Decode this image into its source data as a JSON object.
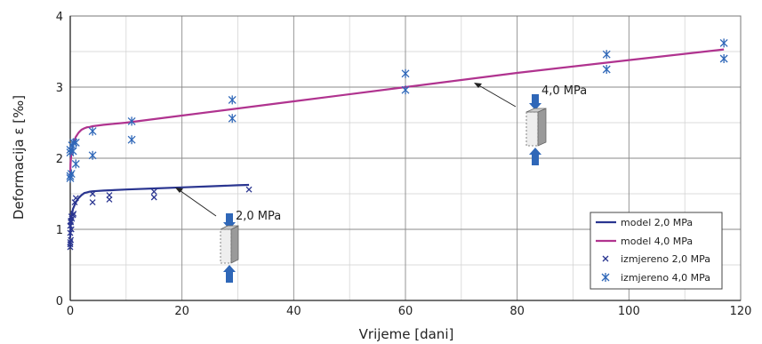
{
  "chart_data": {
    "type": "line",
    "xlabel": "Vrijeme [dani]",
    "ylabel": "Deformacija ε [‰]",
    "xlim": [
      0,
      120
    ],
    "ylim": [
      0,
      4
    ],
    "x_ticks": [
      0,
      20,
      40,
      60,
      80,
      100,
      120
    ],
    "x_tick_labels": [
      "0",
      "20",
      "40",
      "60",
      "80",
      "100",
      "120"
    ],
    "y_ticks": [
      0,
      1,
      2,
      3,
      4
    ],
    "y_tick_labels": [
      "0",
      "1",
      "2",
      "3",
      "4"
    ],
    "grid": true,
    "legend_position": "bottom-right",
    "series": [
      {
        "name": "model 2,0 MPa",
        "kind": "line",
        "color": "#2a3590",
        "x": [
          0,
          0.05,
          0.2,
          0.5,
          1,
          1.5,
          2,
          2.5,
          3,
          3.5,
          4,
          6,
          10,
          15,
          20,
          25,
          30,
          32
        ],
        "y": [
          0.88,
          1.03,
          1.17,
          1.29,
          1.38,
          1.44,
          1.48,
          1.51,
          1.52,
          1.53,
          1.535,
          1.545,
          1.56,
          1.575,
          1.59,
          1.605,
          1.62,
          1.625
        ]
      },
      {
        "name": "model 4,0 MPa",
        "kind": "line",
        "color": "#b0338f",
        "x": [
          0,
          0.05,
          0.2,
          0.5,
          1,
          1.5,
          2,
          2.5,
          3,
          3.5,
          4,
          6,
          10,
          20,
          40,
          60,
          80,
          100,
          117
        ],
        "y": [
          1.75,
          1.92,
          2.07,
          2.2,
          2.3,
          2.36,
          2.4,
          2.42,
          2.435,
          2.44,
          2.45,
          2.47,
          2.5,
          2.6,
          2.8,
          3.0,
          3.2,
          3.38,
          3.53
        ]
      },
      {
        "name": "izmjereno 2,0 MPa",
        "kind": "scatter",
        "marker": "x",
        "color": "#2a3590",
        "x": [
          0,
          0,
          0,
          0,
          0,
          0.1,
          0.1,
          0.1,
          0.2,
          0.2,
          0.3,
          0.5,
          0.6,
          0.8,
          1,
          4,
          4,
          7,
          7,
          15,
          15,
          32
        ],
        "y": [
          0.75,
          0.79,
          0.82,
          0.95,
          1.05,
          0.85,
          1.1,
          1.12,
          1.0,
          1.18,
          1.15,
          1.2,
          1.22,
          1.38,
          1.44,
          1.38,
          1.5,
          1.42,
          1.48,
          1.45,
          1.53,
          1.56
        ]
      },
      {
        "name": "izmjereno 4,0 MPa",
        "kind": "scatter",
        "marker": "asterisk",
        "color": "#2f67b8",
        "x": [
          0,
          0,
          0,
          0,
          0.2,
          0.3,
          0.5,
          0.6,
          1,
          1,
          4,
          4,
          11,
          11,
          29,
          29,
          60,
          60,
          96,
          96,
          117,
          117
        ],
        "y": [
          1.72,
          1.75,
          2.08,
          2.12,
          1.78,
          2.18,
          2.1,
          2.22,
          1.92,
          2.22,
          2.04,
          2.38,
          2.26,
          2.52,
          2.56,
          2.82,
          2.96,
          3.19,
          3.25,
          3.46,
          3.4,
          3.62
        ]
      }
    ],
    "annotations": [
      {
        "text": "2,0 MPa",
        "target_x": 19,
        "target_y": 1.57
      },
      {
        "text": "4,0 MPa",
        "target_x": 72,
        "target_y": 3.08
      }
    ]
  }
}
